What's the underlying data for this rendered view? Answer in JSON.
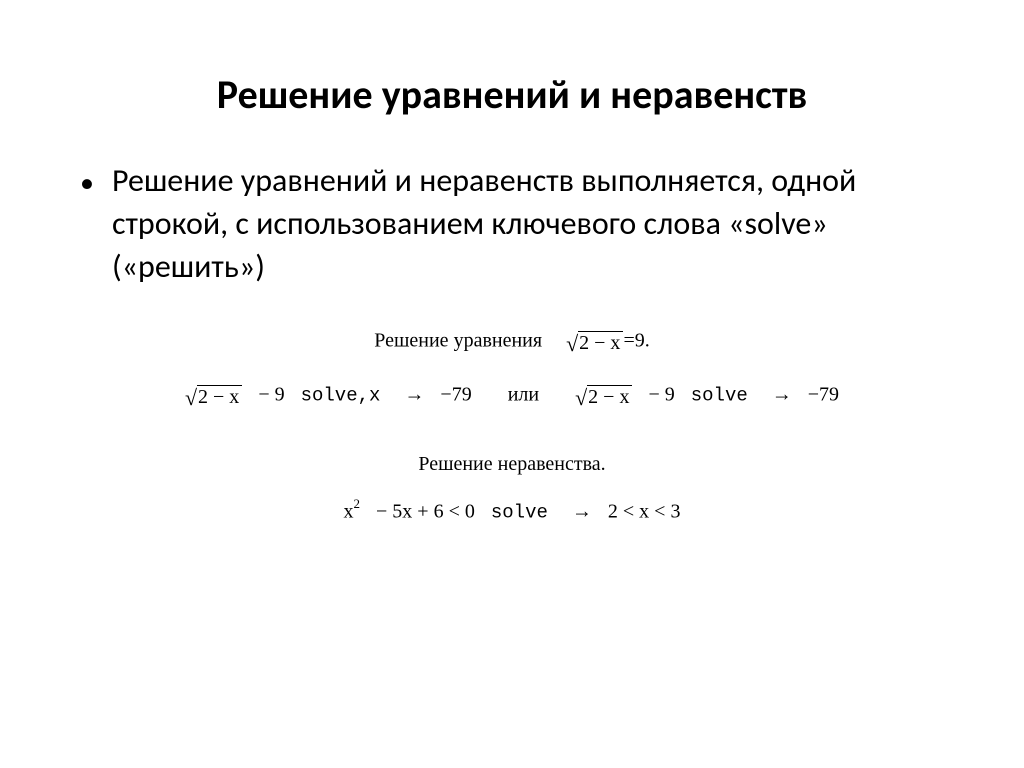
{
  "title": "Решение уравнений и неравенств",
  "bullet": {
    "text": "Решение уравнений и неравенств выполняется, одной строкой, с использованием ключевого слова «solve» («решить»)"
  },
  "math": {
    "eq_caption_prefix": "Решение уравнения",
    "eq_radicand": "2 − x",
    "eq_rhs": "=9.",
    "solve1_radicand": "2 − x",
    "solve1_after_root": "− 9",
    "solve1_keyword": "solve,x",
    "solve1_arrow": "→",
    "solve1_result": "−79",
    "or_word": "или",
    "solve2_radicand": "2 − x",
    "solve2_after_root": "− 9",
    "solve2_keyword": "solve",
    "solve2_arrow": "→",
    "solve2_result": "−79",
    "ineq_caption": "Решение неравенства.",
    "ineq_var": "x",
    "ineq_exp": "2",
    "ineq_body": "− 5x + 6 < 0",
    "ineq_keyword": "solve",
    "ineq_arrow": "→",
    "ineq_result": "2 < x < 3"
  },
  "style": {
    "title_fontsize": 40,
    "body_fontsize": 32,
    "math_fontsize": 20,
    "text_color": "#000000",
    "background_color": "#ffffff",
    "font_family_body": "Calibri",
    "font_family_math": "Times New Roman"
  }
}
